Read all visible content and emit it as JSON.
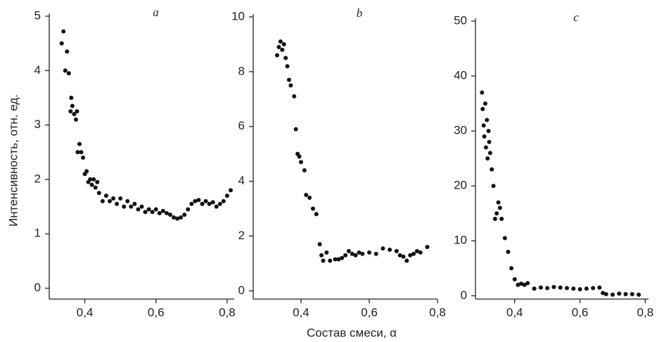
{
  "chart_data": [
    {
      "type": "scatter",
      "title": "a",
      "ylabel": "Интенсивность, отн. ед.",
      "color": "#111",
      "xlim": [
        0.3,
        0.82
      ],
      "ylim": [
        -0.2,
        5
      ],
      "xticks": [
        {
          "value": 0.4,
          "label": "0,4"
        },
        {
          "value": 0.6,
          "label": "0,6"
        },
        {
          "value": 0.8,
          "label": "0,8"
        }
      ],
      "yticks": [
        0,
        1,
        2,
        3,
        4,
        5
      ],
      "x": [
        0.335,
        0.34,
        0.345,
        0.35,
        0.355,
        0.36,
        0.362,
        0.365,
        0.37,
        0.375,
        0.378,
        0.38,
        0.385,
        0.39,
        0.395,
        0.4,
        0.405,
        0.41,
        0.415,
        0.42,
        0.425,
        0.43,
        0.435,
        0.44,
        0.45,
        0.46,
        0.47,
        0.48,
        0.49,
        0.5,
        0.51,
        0.52,
        0.53,
        0.54,
        0.55,
        0.56,
        0.57,
        0.58,
        0.59,
        0.6,
        0.61,
        0.62,
        0.63,
        0.64,
        0.65,
        0.66,
        0.67,
        0.68,
        0.69,
        0.7,
        0.71,
        0.72,
        0.73,
        0.74,
        0.75,
        0.76,
        0.77,
        0.78,
        0.79,
        0.8,
        0.81
      ],
      "values": [
        4.5,
        4.72,
        4.0,
        4.35,
        3.95,
        3.25,
        3.5,
        3.35,
        3.2,
        3.1,
        3.25,
        2.5,
        2.65,
        2.5,
        2.4,
        2.1,
        2.15,
        1.95,
        2.0,
        1.9,
        2.0,
        1.85,
        1.95,
        1.75,
        1.6,
        1.7,
        1.6,
        1.65,
        1.55,
        1.65,
        1.5,
        1.6,
        1.5,
        1.55,
        1.45,
        1.5,
        1.4,
        1.45,
        1.4,
        1.45,
        1.38,
        1.42,
        1.38,
        1.35,
        1.3,
        1.28,
        1.3,
        1.35,
        1.45,
        1.55,
        1.6,
        1.62,
        1.55,
        1.6,
        1.55,
        1.58,
        1.5,
        1.55,
        1.6,
        1.7,
        1.8
      ]
    },
    {
      "type": "scatter",
      "title": "b",
      "xlabel": "Состав смеси, α",
      "color": "#111",
      "xlim": [
        0.26,
        0.8
      ],
      "ylim": [
        -0.3,
        10
      ],
      "xticks": [
        {
          "value": 0.4,
          "label": "0,4"
        },
        {
          "value": 0.6,
          "label": "0,6"
        },
        {
          "value": 0.8,
          "label": "0,8"
        }
      ],
      "yticks": [
        0,
        2,
        4,
        6,
        8,
        10
      ],
      "x": [
        0.33,
        0.335,
        0.34,
        0.345,
        0.35,
        0.355,
        0.36,
        0.365,
        0.37,
        0.38,
        0.385,
        0.39,
        0.395,
        0.4,
        0.41,
        0.415,
        0.425,
        0.435,
        0.445,
        0.455,
        0.46,
        0.465,
        0.475,
        0.485,
        0.5,
        0.51,
        0.52,
        0.53,
        0.54,
        0.55,
        0.56,
        0.57,
        0.58,
        0.6,
        0.62,
        0.64,
        0.66,
        0.68,
        0.69,
        0.7,
        0.71,
        0.72,
        0.73,
        0.74,
        0.75,
        0.77
      ],
      "values": [
        8.6,
        8.9,
        9.1,
        8.8,
        9.0,
        8.5,
        8.2,
        7.7,
        7.5,
        7.1,
        5.9,
        5.0,
        4.9,
        4.7,
        4.4,
        3.5,
        3.4,
        3.0,
        2.8,
        1.7,
        1.3,
        1.1,
        1.4,
        1.1,
        1.15,
        1.15,
        1.2,
        1.3,
        1.45,
        1.35,
        1.3,
        1.4,
        1.35,
        1.4,
        1.35,
        1.55,
        1.5,
        1.45,
        1.3,
        1.25,
        1.1,
        1.3,
        1.35,
        1.45,
        1.4,
        1.6
      ]
    },
    {
      "type": "scatter",
      "title": "c",
      "color": "#111",
      "xlim": [
        0.28,
        0.81
      ],
      "ylim": [
        -0.6,
        50
      ],
      "xticks": [
        {
          "value": 0.4,
          "label": "0,4"
        },
        {
          "value": 0.6,
          "label": "0,6"
        },
        {
          "value": 0.8,
          "label": "0,8"
        }
      ],
      "yticks": [
        0,
        10,
        20,
        30,
        40,
        50
      ],
      "x": [
        0.3,
        0.302,
        0.305,
        0.307,
        0.31,
        0.312,
        0.315,
        0.317,
        0.32,
        0.322,
        0.325,
        0.33,
        0.335,
        0.34,
        0.345,
        0.35,
        0.355,
        0.36,
        0.37,
        0.38,
        0.39,
        0.4,
        0.41,
        0.42,
        0.43,
        0.44,
        0.46,
        0.48,
        0.5,
        0.52,
        0.54,
        0.56,
        0.58,
        0.6,
        0.62,
        0.64,
        0.66,
        0.67,
        0.68,
        0.7,
        0.72,
        0.74,
        0.76,
        0.78
      ],
      "values": [
        37,
        34,
        31,
        29,
        35,
        27,
        32,
        25,
        30,
        28,
        26,
        23,
        20,
        14,
        15,
        17,
        16,
        14,
        10.5,
        8,
        5,
        3,
        2,
        2.2,
        2.0,
        2.3,
        1.3,
        1.5,
        1.4,
        1.6,
        1.5,
        1.4,
        1.3,
        1.2,
        1.3,
        1.4,
        1.5,
        0.5,
        0.3,
        0.2,
        0.4,
        0.3,
        0.3,
        0.2
      ]
    }
  ]
}
